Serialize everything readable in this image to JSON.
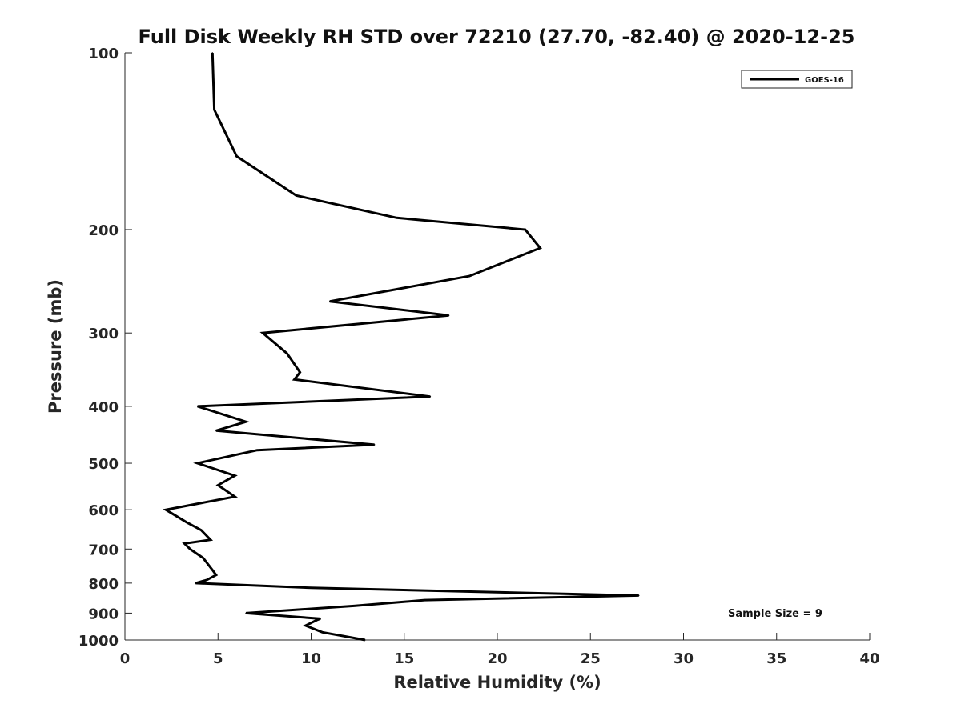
{
  "chart_data": {
    "type": "line",
    "title": "Full Disk Weekly RH STD over 72210 (27.70, -82.40) @ 2020-12-25",
    "xlabel": "Relative Humidity (%)",
    "ylabel": "Pressure (mb)",
    "xlim": [
      0,
      40
    ],
    "ylim": [
      100,
      1000
    ],
    "y_scale": "log",
    "y_inverted": true,
    "x_ticks": [
      0,
      5,
      10,
      15,
      20,
      25,
      30,
      35,
      40
    ],
    "y_ticks": [
      100,
      200,
      300,
      400,
      500,
      600,
      700,
      800,
      900,
      1000
    ],
    "grid": false,
    "legend_position": "top-right",
    "annotation": "Sample Size = 9",
    "series": [
      {
        "name": "GOES-16",
        "color": "#000000",
        "points": [
          [
            4.7,
            100
          ],
          [
            4.8,
            125
          ],
          [
            6.0,
            150
          ],
          [
            9.2,
            175
          ],
          [
            14.6,
            191
          ],
          [
            21.5,
            200
          ],
          [
            22.3,
            215
          ],
          [
            18.5,
            240
          ],
          [
            11.0,
            265
          ],
          [
            17.4,
            280
          ],
          [
            7.4,
            300
          ],
          [
            8.7,
            325
          ],
          [
            9.4,
            350
          ],
          [
            9.1,
            360
          ],
          [
            16.4,
            385
          ],
          [
            3.9,
            400
          ],
          [
            6.5,
            425
          ],
          [
            4.9,
            440
          ],
          [
            13.4,
            465
          ],
          [
            7.1,
            475
          ],
          [
            3.9,
            500
          ],
          [
            5.9,
            525
          ],
          [
            5.0,
            545
          ],
          [
            5.9,
            570
          ],
          [
            2.2,
            600
          ],
          [
            3.3,
            630
          ],
          [
            4.1,
            650
          ],
          [
            4.6,
            675
          ],
          [
            3.2,
            685
          ],
          [
            3.5,
            700
          ],
          [
            4.2,
            725
          ],
          [
            4.7,
            760
          ],
          [
            4.9,
            775
          ],
          [
            4.4,
            790
          ],
          [
            3.8,
            800
          ],
          [
            10.0,
            815
          ],
          [
            27.6,
            840
          ],
          [
            16.1,
            855
          ],
          [
            12.3,
            875
          ],
          [
            6.5,
            900
          ],
          [
            10.5,
            920
          ],
          [
            10.3,
            925
          ],
          [
            9.7,
            945
          ],
          [
            10.6,
            970
          ],
          [
            12.9,
            1000
          ]
        ]
      }
    ]
  }
}
